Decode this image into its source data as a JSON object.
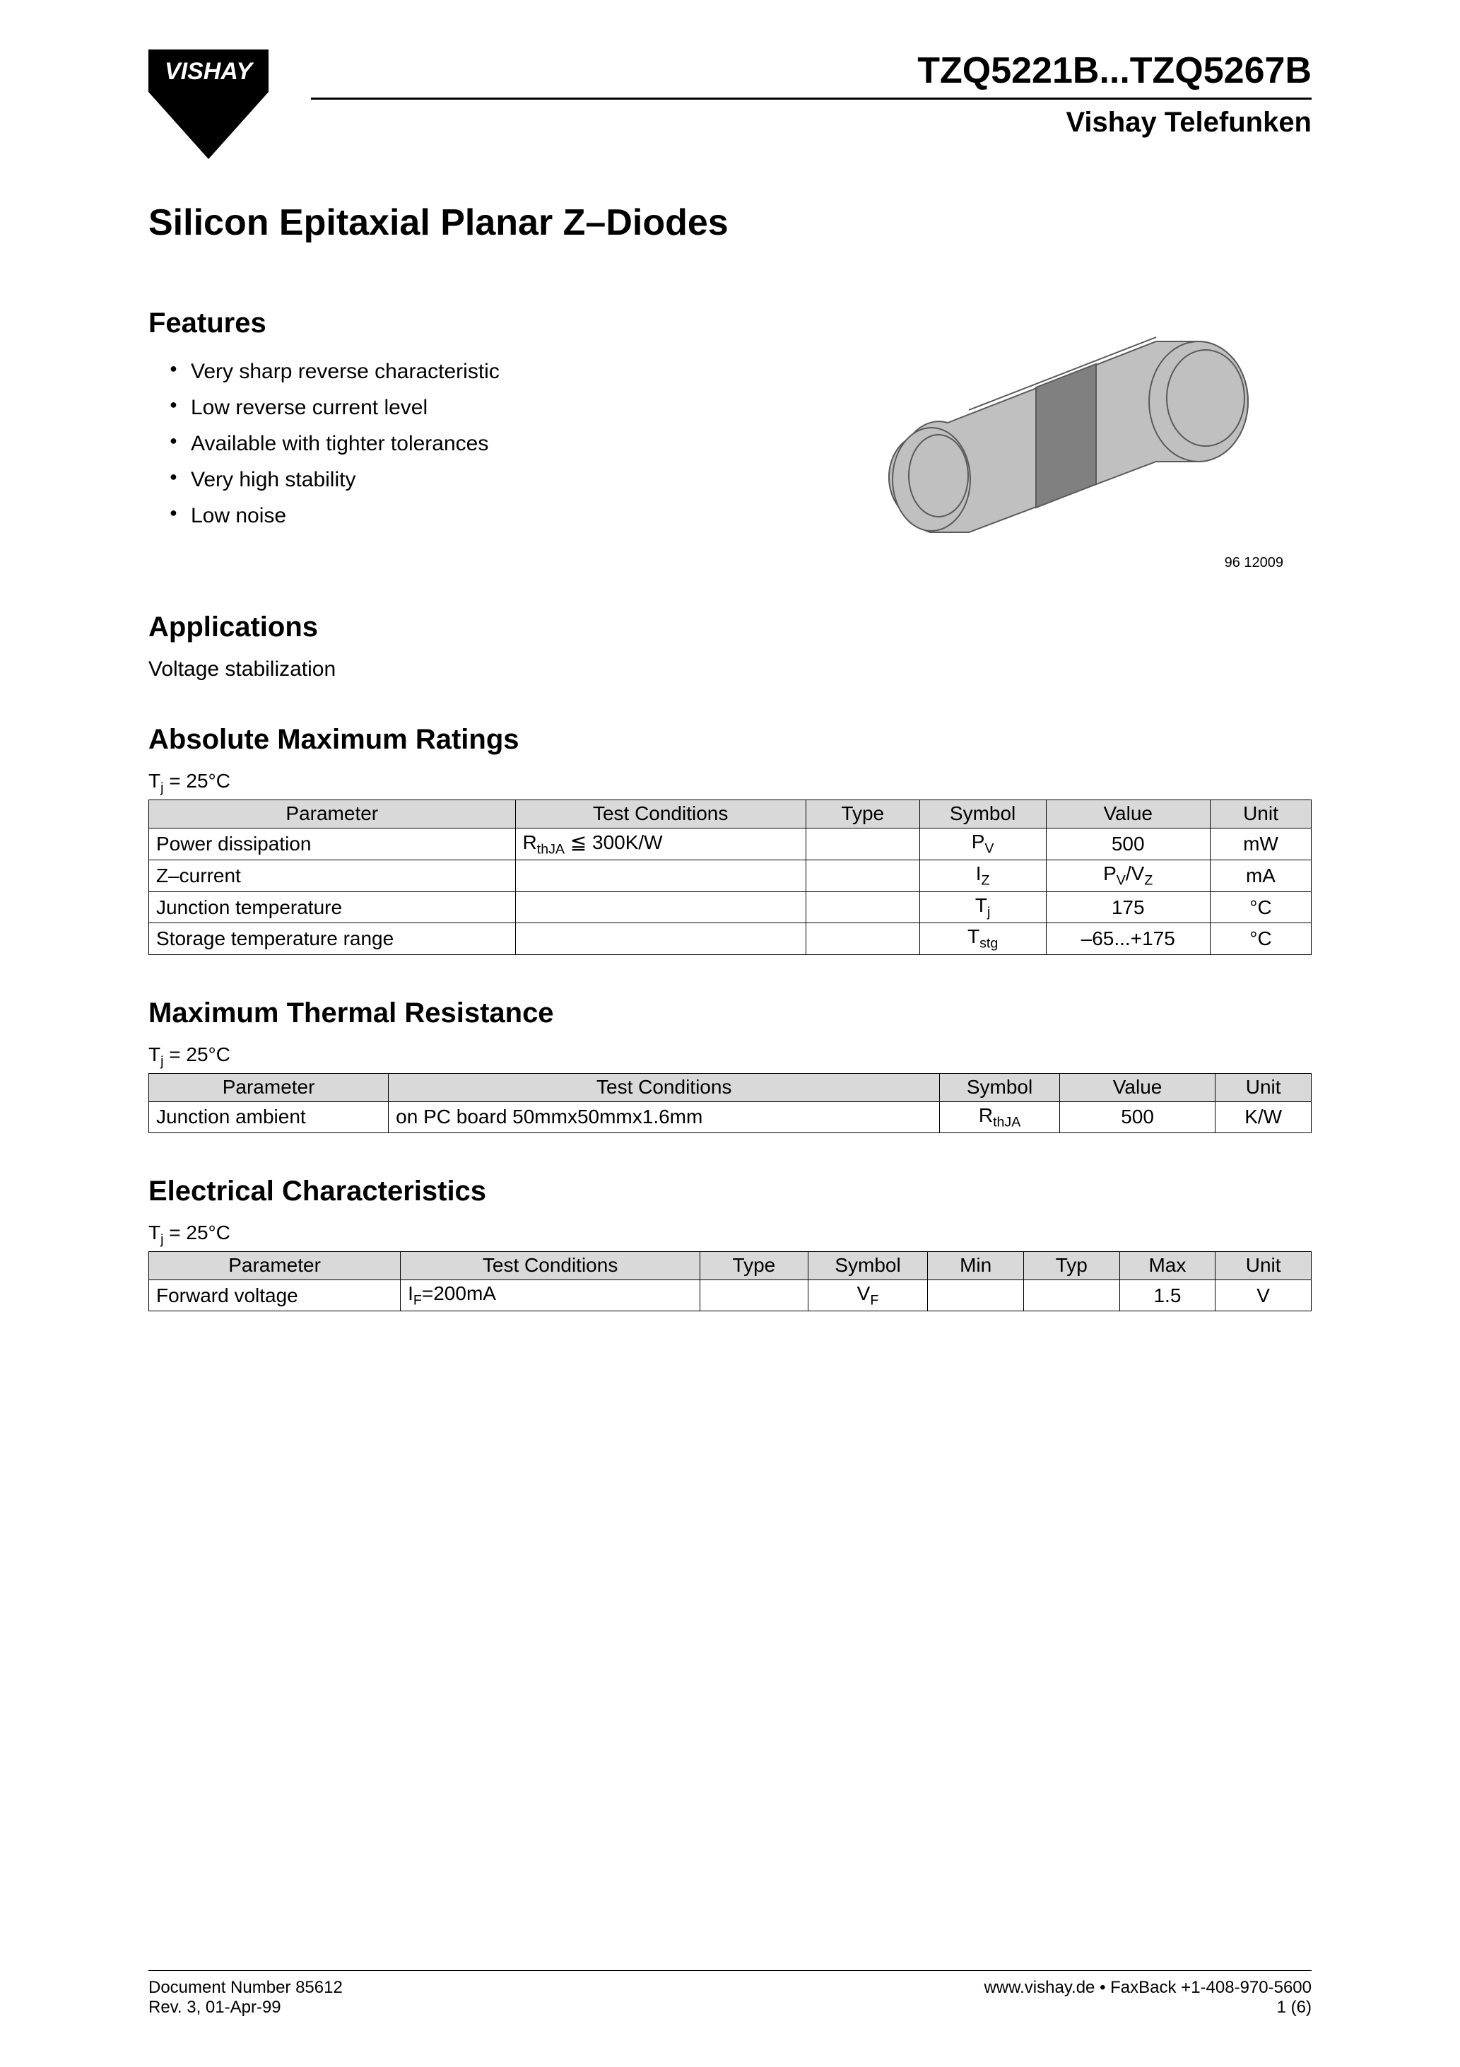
{
  "header": {
    "logo_text": "VISHAY",
    "part_number": "TZQ5221B...TZQ5267B",
    "subtitle": "Vishay Telefunken"
  },
  "main_title": "Silicon Epitaxial Planar Z–Diodes",
  "sections": {
    "features": {
      "heading": "Features",
      "items": [
        "Very sharp reverse characteristic",
        "Low reverse current level",
        "Available with tighter tolerances",
        "Very high stability",
        "Low noise"
      ]
    },
    "applications": {
      "heading": "Applications",
      "text": "Voltage stabilization"
    },
    "abs_max": {
      "heading": "Absolute Maximum Ratings",
      "temp_note": "Tj = 25°C",
      "columns": [
        "Parameter",
        "Test Conditions",
        "Type",
        "Symbol",
        "Value",
        "Unit"
      ],
      "col_widths": [
        "29%",
        "23%",
        "9%",
        "10%",
        "13%",
        "8%"
      ],
      "rows": [
        {
          "param": "Power dissipation",
          "cond": "RthJA ≦ 300K/W",
          "type": "",
          "symbol": "P",
          "symbol_sub": "V",
          "value": "500",
          "unit": "mW"
        },
        {
          "param": "Z–current",
          "cond": "",
          "type": "",
          "symbol": "I",
          "symbol_sub": "Z",
          "value": "PV/VZ",
          "value_html": "P<span class=\"sub\">V</span>/V<span class=\"sub\">Z</span>",
          "unit": "mA"
        },
        {
          "param": "Junction temperature",
          "cond": "",
          "type": "",
          "symbol": "T",
          "symbol_sub": "j",
          "value": "175",
          "unit": "°C"
        },
        {
          "param": "Storage temperature range",
          "cond": "",
          "type": "",
          "symbol": "T",
          "symbol_sub": "stg",
          "value": "–65...+175",
          "unit": "°C"
        }
      ]
    },
    "thermal": {
      "heading": "Maximum Thermal Resistance",
      "temp_note": "Tj = 25°C",
      "columns": [
        "Parameter",
        "Test Conditions",
        "Symbol",
        "Value",
        "Unit"
      ],
      "col_widths": [
        "20%",
        "46%",
        "10%",
        "13%",
        "8%"
      ],
      "rows": [
        {
          "param": "Junction ambient",
          "cond": "on PC board 50mmx50mmx1.6mm",
          "symbol": "R",
          "symbol_sub": "thJA",
          "value": "500",
          "unit": "K/W"
        }
      ]
    },
    "electrical": {
      "heading": "Electrical Characteristics",
      "temp_note": "Tj = 25°C",
      "columns": [
        "Parameter",
        "Test Conditions",
        "Type",
        "Symbol",
        "Min",
        "Typ",
        "Max",
        "Unit"
      ],
      "col_widths": [
        "21%",
        "25%",
        "9%",
        "10%",
        "8%",
        "8%",
        "8%",
        "8%"
      ],
      "rows": [
        {
          "param": "Forward voltage",
          "cond": "IF=200mA",
          "cond_html": "I<span class=\"sub\">F</span>=200mA",
          "type": "",
          "symbol": "V",
          "symbol_sub": "F",
          "min": "",
          "typ": "",
          "max": "1.5",
          "unit": "V"
        }
      ]
    }
  },
  "image": {
    "code": "96 12009",
    "colors": {
      "body": "#c0c0c0",
      "band": "#808080",
      "outline": "#5a5a5a"
    }
  },
  "footer": {
    "doc_number": "Document Number 85612",
    "rev": "Rev. 3, 01-Apr-99",
    "url": "www.vishay.de • FaxBack +1-408-970-5600",
    "page": "1 (6)"
  }
}
